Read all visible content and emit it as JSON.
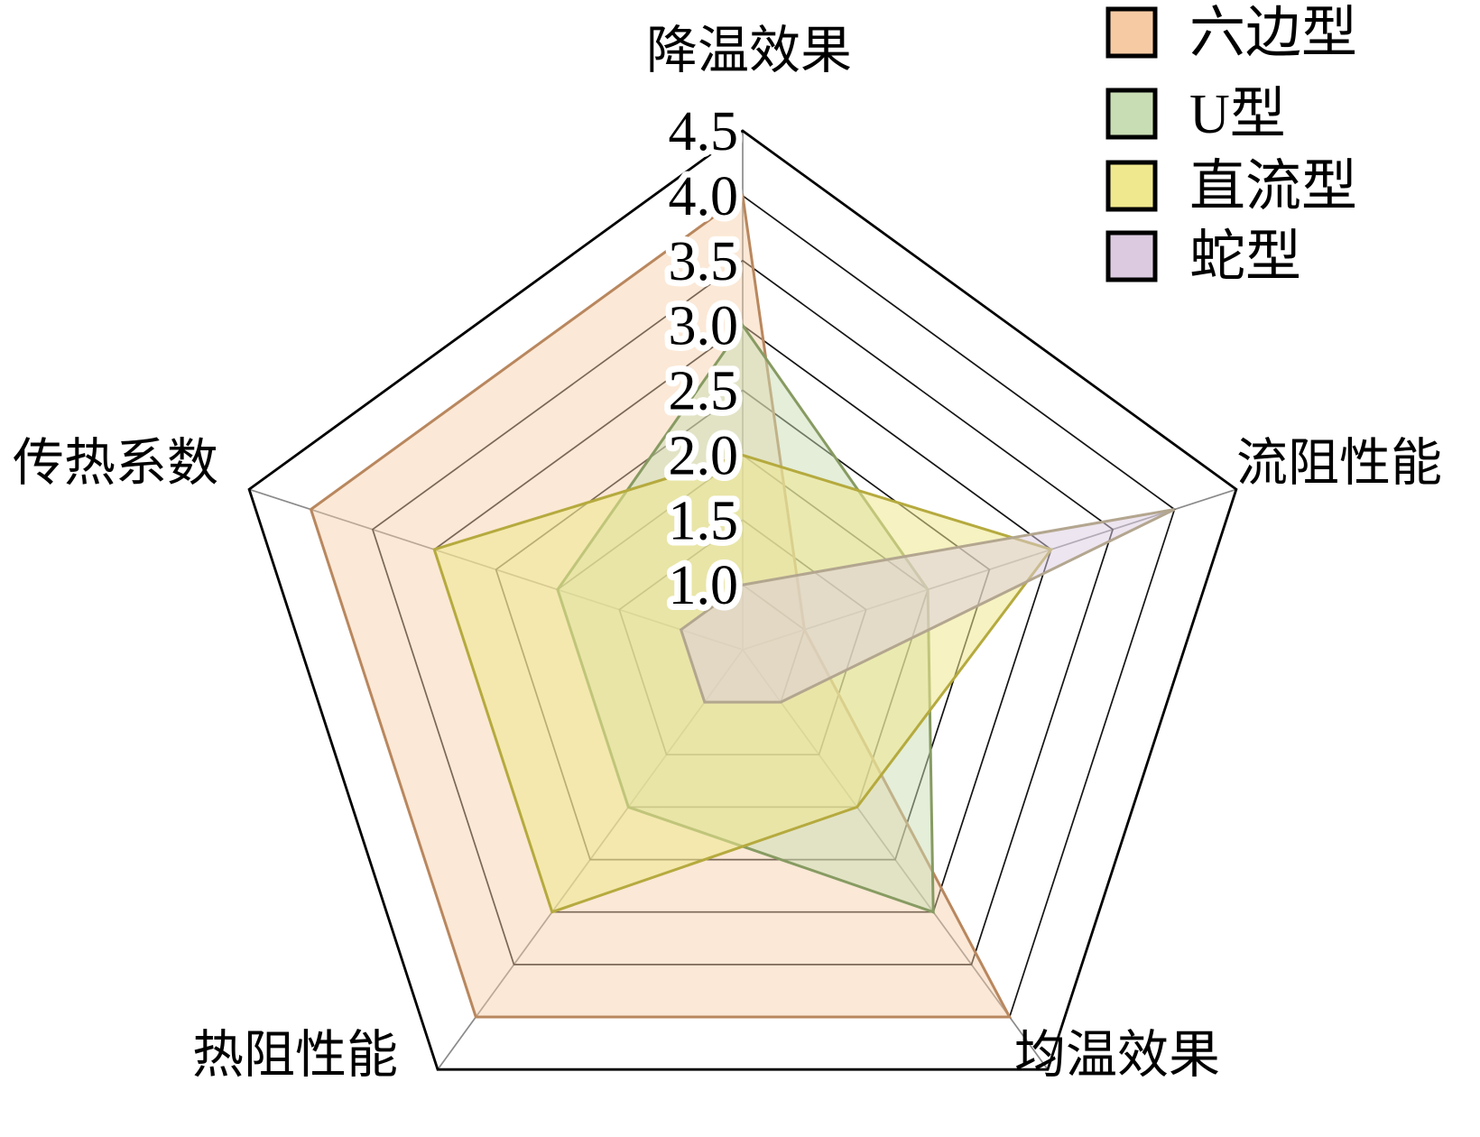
{
  "chart_data": {
    "type": "radar",
    "title": "",
    "axes": [
      "降温效果",
      "流阻性能",
      "均温效果",
      "热阻性能",
      "传热系数"
    ],
    "tick_labels": [
      "4.5",
      "4.0",
      "3.5",
      "3.0",
      "2.5",
      "2.0",
      "1.5",
      "1.0"
    ],
    "scale": {
      "center_value": 0.5,
      "max": 4.5,
      "ring_step": 0.5,
      "first_labeled_ring": 1.0
    },
    "grid": {
      "shape": "pentagon",
      "rings": 8,
      "ring_color": "#141414",
      "spoke_color": "#8a8a8a",
      "outer_color": "#000000"
    },
    "legend_position": "top-right",
    "series": [
      {
        "name": "六边型",
        "values": [
          4.0,
          1.0,
          4.0,
          4.0,
          4.0
        ],
        "fill": "#f6cba4",
        "fill_opacity": 0.45,
        "stroke": "#b9875e"
      },
      {
        "name": "U型",
        "values": [
          3.0,
          2.0,
          3.0,
          2.0,
          2.0
        ],
        "fill": "#c9ddb4",
        "fill_opacity": 0.5,
        "stroke": "#879b62"
      },
      {
        "name": "直流型",
        "values": [
          2.0,
          3.0,
          2.0,
          3.0,
          3.0
        ],
        "fill": "#efe88e",
        "fill_opacity": 0.55,
        "stroke": "#b5aa3e"
      },
      {
        "name": "蛇型",
        "values": [
          1.0,
          4.0,
          1.0,
          1.0,
          1.0
        ],
        "fill": "#dccbe0",
        "fill_opacity": 0.5,
        "stroke": "#b3a68f"
      }
    ]
  }
}
